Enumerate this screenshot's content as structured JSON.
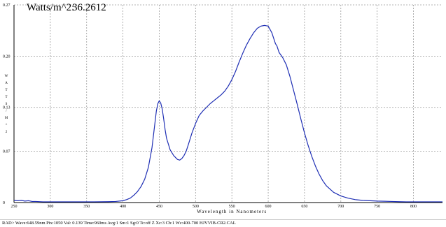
{
  "readout": {
    "label": "Watts/m^2:",
    "value": "36.2612"
  },
  "status_bar": {
    "text": "RAD> Wave:648.59nm  Pix:1050  Val: 0.139  Time:960ms  Avg:1  Sm:1  Sg:0  Tc:off  Z  Xc:3  Cb:1  Wc:400-700 HJVVIB-CR2.CAL"
  },
  "colors": {
    "curve": "#1f2fb4",
    "grid": "#9a9a9a",
    "axis": "#000000"
  },
  "chart_data": {
    "type": "line",
    "title": "",
    "xlabel": "Wavelength in Nanometers",
    "ylabel": "W A T T S / M ^ 2",
    "xlim": [
      250,
      840
    ],
    "ylim": [
      0,
      0.27
    ],
    "x_ticks": [
      "250",
      "300",
      "350",
      "400",
      "450",
      "500",
      "550",
      "600",
      "650",
      "700",
      "750",
      "800"
    ],
    "y_ticks": [
      "0",
      "0.07",
      "0.13",
      "0.20",
      "0.27"
    ],
    "grid": true,
    "series": [
      {
        "x": [
          250,
          255,
          260,
          265,
          270,
          275,
          280,
          290,
          300,
          320,
          340,
          360,
          380,
          390,
          400,
          405,
          410,
          415,
          420,
          425,
          430,
          435,
          440,
          443,
          446,
          448,
          450,
          452,
          454,
          456,
          458,
          460,
          465,
          470,
          475,
          478,
          481,
          484,
          487,
          490,
          495,
          500,
          505,
          510,
          515,
          520,
          525,
          530,
          535,
          540,
          545,
          550,
          555,
          560,
          565,
          570,
          575,
          580,
          585,
          590,
          595,
          600,
          605,
          610,
          612,
          615,
          620,
          625,
          630,
          635,
          640,
          645,
          650,
          655,
          660,
          665,
          670,
          675,
          680,
          690,
          700,
          710,
          720,
          730,
          740,
          750,
          760,
          770,
          780,
          790,
          800,
          810,
          820,
          830,
          840
        ],
        "y": [
          0.003,
          0.0025,
          0.003,
          0.002,
          0.0025,
          0.0015,
          0.0015,
          0.001,
          0.001,
          0.001,
          0.001,
          0.001,
          0.0012,
          0.0015,
          0.0025,
          0.004,
          0.006,
          0.01,
          0.015,
          0.022,
          0.032,
          0.048,
          0.075,
          0.1,
          0.125,
          0.135,
          0.139,
          0.136,
          0.128,
          0.115,
          0.1,
          0.088,
          0.072,
          0.064,
          0.059,
          0.058,
          0.06,
          0.064,
          0.07,
          0.079,
          0.095,
          0.108,
          0.119,
          0.125,
          0.13,
          0.135,
          0.139,
          0.143,
          0.147,
          0.152,
          0.159,
          0.168,
          0.179,
          0.192,
          0.204,
          0.215,
          0.224,
          0.232,
          0.238,
          0.241,
          0.242,
          0.241,
          0.232,
          0.217,
          0.214,
          0.205,
          0.198,
          0.188,
          0.172,
          0.153,
          0.134,
          0.114,
          0.095,
          0.078,
          0.063,
          0.05,
          0.039,
          0.03,
          0.023,
          0.014,
          0.009,
          0.006,
          0.004,
          0.003,
          0.0025,
          0.002,
          0.0018,
          0.0015,
          0.0012,
          0.001,
          0.001,
          0.001,
          0.001,
          0.001,
          0.001
        ]
      }
    ]
  }
}
